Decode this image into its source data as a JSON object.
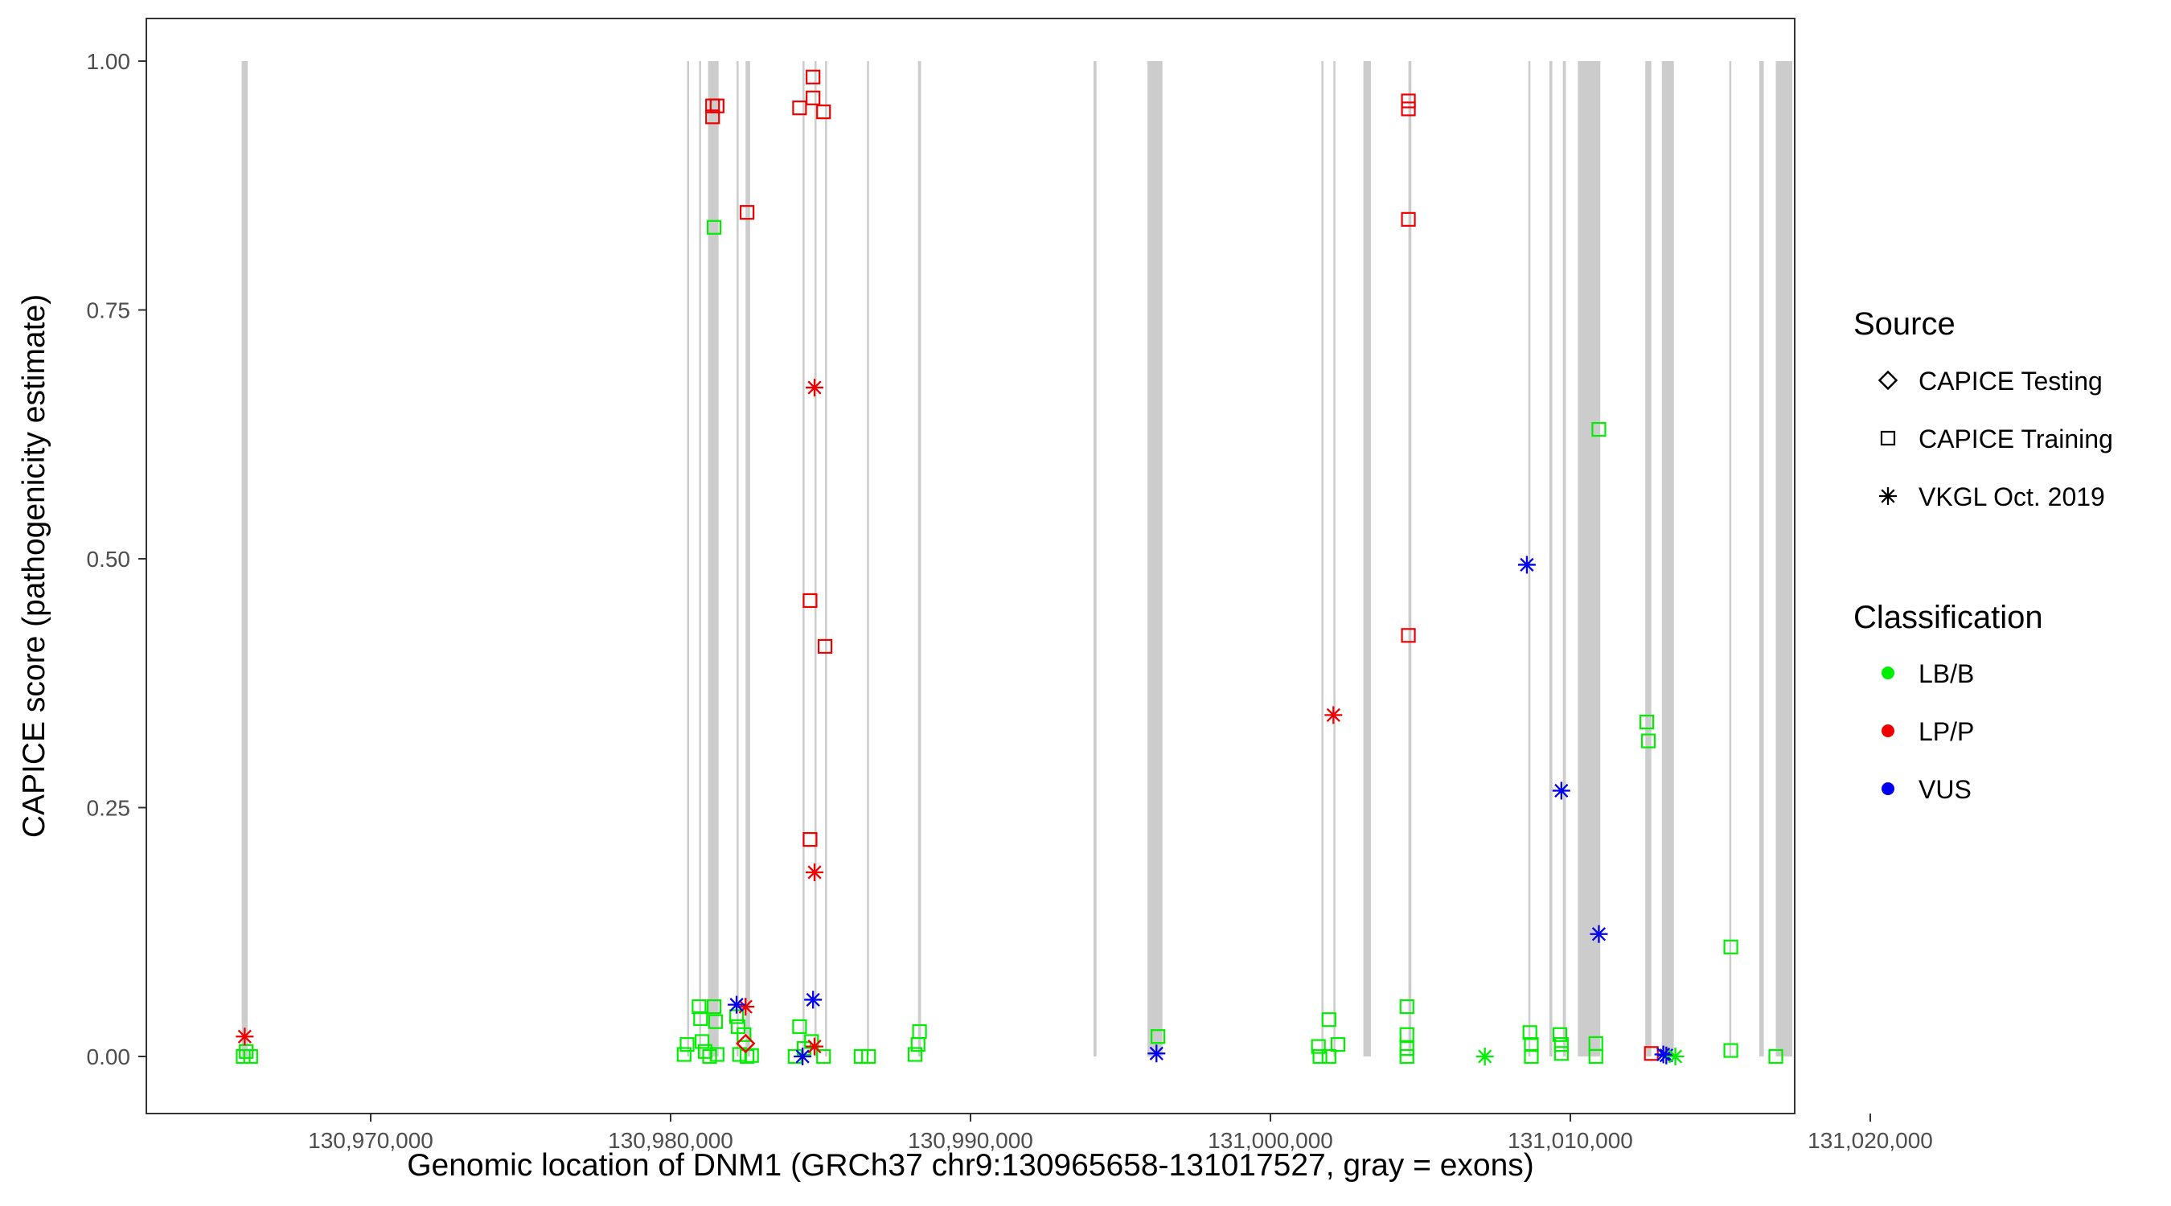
{
  "chart_data": {
    "type": "scatter",
    "xlabel": "Genomic location of DNM1 (GRCh37 chr9:130965658-131017527, gray = exons)",
    "ylabel": "CAPICE score (pathogenicity estimate)",
    "xlim": [
      130965658,
      131017527
    ],
    "ylim": [
      -0.05,
      1.05
    ],
    "x_ticks": [
      130970000,
      130980000,
      130990000,
      131000000,
      131010000,
      131020000
    ],
    "x_tick_labels": [
      "130,970,000",
      "130,980,000",
      "130,990,000",
      "131,000,000",
      "131,010,000",
      "131,020,000"
    ],
    "y_ticks": [
      0,
      0.25,
      0.5,
      0.75,
      1.0
    ],
    "y_tick_labels": [
      "0.00",
      "0.25",
      "0.50",
      "0.75",
      "1.00"
    ],
    "grid": false,
    "legend_position": "right",
    "exon_color": "#cccccc",
    "exons": [
      [
        130965700,
        130965900
      ],
      [
        130980550,
        130980600
      ],
      [
        130980950,
        130981000
      ],
      [
        130981250,
        130981600
      ],
      [
        130982200,
        130982250
      ],
      [
        130982500,
        130982650
      ],
      [
        130984400,
        130984450
      ],
      [
        130984800,
        130984850
      ],
      [
        130985150,
        130985200
      ],
      [
        130986550,
        130986600
      ],
      [
        130988250,
        130988350
      ],
      [
        130994100,
        130994200
      ],
      [
        130995900,
        130996400
      ],
      [
        131001700,
        131001750
      ],
      [
        131002100,
        131002150
      ],
      [
        131003100,
        131003350
      ],
      [
        131004600,
        131004700
      ],
      [
        131008600,
        131008650
      ],
      [
        131009300,
        131009400
      ],
      [
        131009750,
        131009850
      ],
      [
        131010250,
        131011000
      ],
      [
        131012500,
        131012700
      ],
      [
        131013050,
        131013450
      ],
      [
        131015300,
        131015350
      ],
      [
        131016300,
        131016450
      ],
      [
        131016850,
        131017400
      ]
    ],
    "legend": {
      "source_title": "Source",
      "source_items": [
        {
          "label": "CAPICE Testing",
          "shape": "diamond"
        },
        {
          "label": "CAPICE Training",
          "shape": "square"
        },
        {
          "label": "VKGL Oct. 2019",
          "shape": "asterisk"
        }
      ],
      "class_title": "Classification",
      "class_items": [
        {
          "label": "LB/B",
          "color": "#00ee00"
        },
        {
          "label": "LP/P",
          "color": "#ee0000"
        },
        {
          "label": "VUS",
          "color": "#0000ee"
        }
      ]
    },
    "series": [
      {
        "name": "CAPICE Training",
        "shape": "square",
        "points": [
          {
            "x": 130965750,
            "y": 0.0,
            "c": "LB/B"
          },
          {
            "x": 130965850,
            "y": 0.005,
            "c": "LB/B"
          },
          {
            "x": 130966000,
            "y": 0.0,
            "c": "LB/B"
          },
          {
            "x": 130980450,
            "y": 0.002,
            "c": "LB/B"
          },
          {
            "x": 130980550,
            "y": 0.012,
            "c": "LB/B"
          },
          {
            "x": 130980950,
            "y": 0.05,
            "c": "LB/B"
          },
          {
            "x": 130981000,
            "y": 0.038,
            "c": "LB/B"
          },
          {
            "x": 130981050,
            "y": 0.015,
            "c": "LB/B"
          },
          {
            "x": 130981150,
            "y": 0.005,
            "c": "LB/B"
          },
          {
            "x": 130981300,
            "y": 0.0,
            "c": "LB/B"
          },
          {
            "x": 130981450,
            "y": 0.833,
            "c": "LB/B"
          },
          {
            "x": 130981450,
            "y": 0.05,
            "c": "LB/B"
          },
          {
            "x": 130981500,
            "y": 0.035,
            "c": "LB/B"
          },
          {
            "x": 130981550,
            "y": 0.002,
            "c": "LB/B"
          },
          {
            "x": 130982200,
            "y": 0.04,
            "c": "LB/B"
          },
          {
            "x": 130982250,
            "y": 0.03,
            "c": "LB/B"
          },
          {
            "x": 130982300,
            "y": 0.002,
            "c": "LB/B"
          },
          {
            "x": 130982450,
            "y": 0.022,
            "c": "LB/B"
          },
          {
            "x": 130982550,
            "y": 0.0,
            "c": "LB/B"
          },
          {
            "x": 130982700,
            "y": 0.001,
            "c": "LB/B"
          },
          {
            "x": 130984150,
            "y": 0.0,
            "c": "LB/B"
          },
          {
            "x": 130984300,
            "y": 0.03,
            "c": "LB/B"
          },
          {
            "x": 130984450,
            "y": 0.008,
            "c": "LB/B"
          },
          {
            "x": 130984700,
            "y": 0.015,
            "c": "LB/B"
          },
          {
            "x": 130985100,
            "y": 0.0,
            "c": "LB/B"
          },
          {
            "x": 130986350,
            "y": 0.0,
            "c": "LB/B"
          },
          {
            "x": 130986600,
            "y": 0.0,
            "c": "LB/B"
          },
          {
            "x": 130988150,
            "y": 0.002,
            "c": "LB/B"
          },
          {
            "x": 130988250,
            "y": 0.012,
            "c": "LB/B"
          },
          {
            "x": 130988300,
            "y": 0.025,
            "c": "LB/B"
          },
          {
            "x": 130996250,
            "y": 0.02,
            "c": "LB/B"
          },
          {
            "x": 131001600,
            "y": 0.01,
            "c": "LB/B"
          },
          {
            "x": 131001650,
            "y": 0.0,
            "c": "LB/B"
          },
          {
            "x": 131001950,
            "y": 0.037,
            "c": "LB/B"
          },
          {
            "x": 131001950,
            "y": 0.0,
            "c": "LB/B"
          },
          {
            "x": 131002250,
            "y": 0.012,
            "c": "LB/B"
          },
          {
            "x": 131004550,
            "y": 0.05,
            "c": "LB/B"
          },
          {
            "x": 131004550,
            "y": 0.022,
            "c": "LB/B"
          },
          {
            "x": 131004550,
            "y": 0.008,
            "c": "LB/B"
          },
          {
            "x": 131004550,
            "y": 0.0,
            "c": "LB/B"
          },
          {
            "x": 131008650,
            "y": 0.024,
            "c": "LB/B"
          },
          {
            "x": 131008700,
            "y": 0.012,
            "c": "LB/B"
          },
          {
            "x": 131008700,
            "y": 0.0,
            "c": "LB/B"
          },
          {
            "x": 131009650,
            "y": 0.022,
            "c": "LB/B"
          },
          {
            "x": 131009700,
            "y": 0.012,
            "c": "LB/B"
          },
          {
            "x": 131009700,
            "y": 0.003,
            "c": "LB/B"
          },
          {
            "x": 131010850,
            "y": 0.013,
            "c": "LB/B"
          },
          {
            "x": 131010850,
            "y": 0.0,
            "c": "LB/B"
          },
          {
            "x": 131010950,
            "y": 0.63,
            "c": "LB/B"
          },
          {
            "x": 131012550,
            "y": 0.336,
            "c": "LB/B"
          },
          {
            "x": 131012600,
            "y": 0.317,
            "c": "LB/B"
          },
          {
            "x": 131015350,
            "y": 0.11,
            "c": "LB/B"
          },
          {
            "x": 131015350,
            "y": 0.006,
            "c": "LB/B"
          },
          {
            "x": 131016850,
            "y": 0.0,
            "c": "LB/B"
          },
          {
            "x": 130981400,
            "y": 0.955,
            "c": "LP/P"
          },
          {
            "x": 130981400,
            "y": 0.944,
            "c": "LP/P"
          },
          {
            "x": 130981550,
            "y": 0.955,
            "c": "LP/P"
          },
          {
            "x": 130982550,
            "y": 0.848,
            "c": "LP/P"
          },
          {
            "x": 130984300,
            "y": 0.953,
            "c": "LP/P"
          },
          {
            "x": 130984750,
            "y": 0.984,
            "c": "LP/P"
          },
          {
            "x": 130984750,
            "y": 0.963,
            "c": "LP/P"
          },
          {
            "x": 130985100,
            "y": 0.949,
            "c": "LP/P"
          },
          {
            "x": 130984650,
            "y": 0.458,
            "c": "LP/P"
          },
          {
            "x": 130985150,
            "y": 0.412,
            "c": "LP/P"
          },
          {
            "x": 130984650,
            "y": 0.218,
            "c": "LP/P"
          },
          {
            "x": 131004600,
            "y": 0.96,
            "c": "LP/P"
          },
          {
            "x": 131004600,
            "y": 0.952,
            "c": "LP/P"
          },
          {
            "x": 131004600,
            "y": 0.841,
            "c": "LP/P"
          },
          {
            "x": 131004600,
            "y": 0.423,
            "c": "LP/P"
          },
          {
            "x": 131012700,
            "y": 0.003,
            "c": "LP/P"
          }
        ]
      },
      {
        "name": "CAPICE Testing",
        "shape": "diamond",
        "points": [
          {
            "x": 130982500,
            "y": 0.013,
            "c": "LP/P"
          }
        ]
      },
      {
        "name": "VKGL Oct. 2019",
        "shape": "asterisk",
        "points": [
          {
            "x": 130965800,
            "y": 0.02,
            "c": "LP/P"
          },
          {
            "x": 130982500,
            "y": 0.05,
            "c": "LP/P"
          },
          {
            "x": 130984800,
            "y": 0.672,
            "c": "LP/P"
          },
          {
            "x": 130984800,
            "y": 0.185,
            "c": "LP/P"
          },
          {
            "x": 130984800,
            "y": 0.01,
            "c": "LP/P"
          },
          {
            "x": 131002100,
            "y": 0.343,
            "c": "LP/P"
          },
          {
            "x": 130982200,
            "y": 0.052,
            "c": "VUS"
          },
          {
            "x": 130984750,
            "y": 0.057,
            "c": "VUS"
          },
          {
            "x": 130984400,
            "y": 0.0,
            "c": "VUS"
          },
          {
            "x": 130996200,
            "y": 0.003,
            "c": "VUS"
          },
          {
            "x": 131008550,
            "y": 0.494,
            "c": "VUS"
          },
          {
            "x": 131009700,
            "y": 0.267,
            "c": "VUS"
          },
          {
            "x": 131010950,
            "y": 0.123,
            "c": "VUS"
          },
          {
            "x": 131013100,
            "y": 0.002,
            "c": "VUS"
          },
          {
            "x": 131013200,
            "y": 0.001,
            "c": "VUS"
          },
          {
            "x": 131007150,
            "y": 0.0,
            "c": "LB/B"
          },
          {
            "x": 131013500,
            "y": 0.0,
            "c": "LB/B"
          }
        ]
      }
    ]
  }
}
